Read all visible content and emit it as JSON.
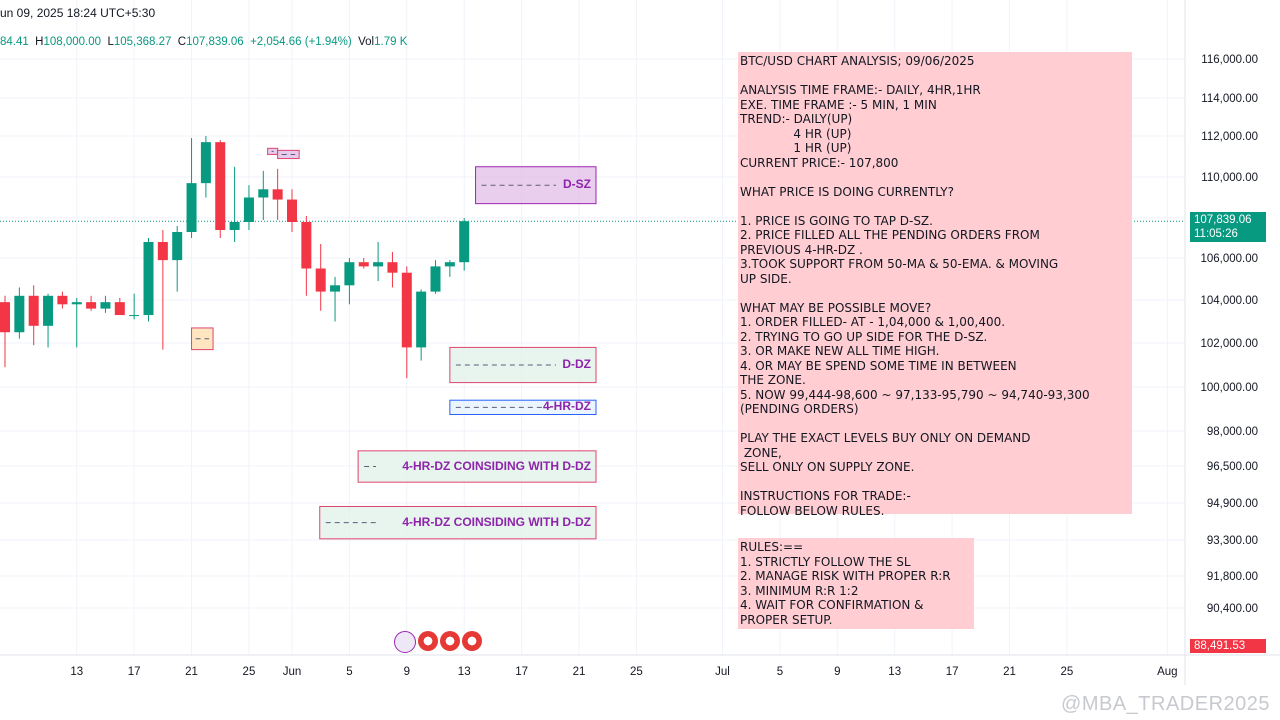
{
  "header": {
    "datetime": "un 09, 2025 18:24 UTC+5:30",
    "ohlc": {
      "open_partial": "84.41",
      "high_label": "H",
      "high": "108,000.00",
      "low_label": "L",
      "low": "105,368.27",
      "close_label": "C",
      "close": "107,839.06",
      "change": "+2,054.66 (+1.94%)",
      "vol_label": "Vol",
      "vol": "1.79 K"
    }
  },
  "price_badges": {
    "current_price": "107,839.06",
    "countdown": "11:05:26",
    "low_badge": "88,491.53",
    "current_color": "#089981",
    "low_color": "#f23645"
  },
  "zones": [
    {
      "label": "D-SZ",
      "top": 110500,
      "bottom": 108700,
      "x_start_day": 13,
      "fill": "#e1bee7",
      "border": "#9c27b0",
      "label_color": "#8e24aa"
    },
    {
      "label": "D-DZ",
      "top": 101800,
      "bottom": 100200,
      "x_start_day": 11,
      "fill": "#e0f2e9",
      "border": "#e0436f",
      "label_color": "#8e24aa"
    },
    {
      "label": "4-HR-DZ",
      "top": 99400,
      "bottom": 98750,
      "x_start_day": 11,
      "fill": "#e3f2fd",
      "border": "#2962ff",
      "label_color": "#8e24aa"
    },
    {
      "label": "4-HR-DZ COINSIDING WITH D-DZ",
      "top": 97150,
      "bottom": 95800,
      "x_start_day": 6,
      "fill": "#e0f2e9",
      "border": "#e0436f",
      "label_color": "#8e24aa"
    },
    {
      "label": "4-HR-DZ COINSIDING WITH D-DZ",
      "top": 94750,
      "bottom": 93350,
      "x_start_day": 5,
      "fill": "#e0f2e9",
      "border": "#e0436f",
      "label_color": "#8e24aa"
    }
  ],
  "small_zones": [
    {
      "label": "",
      "top": 102700,
      "bottom": 101700,
      "x0_day": -7,
      "x1_day": -5.5,
      "fill": "#ffe0b2",
      "border": "#e0436f"
    },
    {
      "label": "",
      "top": 111400,
      "bottom": 111100,
      "x0_day": -1.7,
      "x1_day": -1.0,
      "fill": "#e1bee7",
      "border": "#e0436f"
    },
    {
      "label": "",
      "top": 111300,
      "bottom": 110900,
      "x0_day": -1.0,
      "x1_day": 0.5,
      "fill": "#e1bee7",
      "border": "#e0436f"
    }
  ],
  "analysis_note": {
    "text": "BTC/USD CHART ANALYSIS; 09/06/2025\n\nANALYSIS TIME FRAME:- DAILY, 4HR,1HR\nEXE. TIME FRAME :- 5 MIN, 1 MIN\nTREND:- DAILY(UP)\n              4 HR (UP)\n              1 HR (UP)\nCURRENT PRICE:- 107,800\n\nWHAT PRICE IS DOING CURRENTLY?\n\n1. PRICE IS GOING TO TAP D-SZ.\n2. PRICE FILLED ALL THE PENDING ORDERS FROM\nPREVIOUS 4-HR-DZ .\n3.TOOK SUPPORT FROM 50-MA & 50-EMA. & MOVING\nUP SIDE.\n\nWHAT MAY BE POSSIBLE MOVE?\n1. ORDER FILLED- AT - 1,04,000 & 1,00,400.\n2. TRYING TO GO UP SIDE FOR THE D-SZ.\n3. OR MAKE NEW ALL TIME HIGH.\n4. OR MAY BE SPEND SOME TIME IN BETWEEN\nTHE ZONE.\n5. NOW 99,444-98,600 ~ 97,133-95,790 ~ 94,740-93,300\n(PENDING ORDERS)\n\nPLAY THE EXACT LEVELS BUY ONLY ON DEMAND\n ZONE,\nSELL ONLY ON SUPPLY ZONE.\n\nINSTRUCTIONS FOR TRADE:-\nFOLLOW BELOW RULES."
  },
  "rules_note": {
    "text": "RULES:==\n1. STRICTLY FOLLOW THE SL\n2. MANAGE RISK WITH PROPER R:R\n3. MINIMUM R:R 1:2\n4. WAIT FOR CONFIRMATION &\nPROPER SETUP."
  },
  "watermark": "@MBA_TRADER2025",
  "chart_data": {
    "type": "candlestick",
    "title": "",
    "y_axis_position": "right",
    "y_ticks": [
      "116,000.00",
      "114,000.00",
      "112,000.00",
      "110,000.00",
      "107,839.06",
      "106,000.00",
      "104,000.00",
      "102,000.00",
      "100,000.00",
      "98,000.00",
      "96,500.00",
      "94,900.00",
      "93,300.00",
      "91,800.00",
      "90,400.00",
      "88,491.53"
    ],
    "y_tick_values": [
      116000,
      114000,
      112000,
      110000,
      108000,
      106000,
      104000,
      102000,
      100000,
      98000,
      96500,
      94900,
      93300,
      91800,
      90400
    ],
    "x_ticks": [
      {
        "label": "13",
        "day": -15
      },
      {
        "label": "17",
        "day": -11
      },
      {
        "label": "21",
        "day": -7
      },
      {
        "label": "25",
        "day": -3
      },
      {
        "label": "Jun",
        "day": 0
      },
      {
        "label": "5",
        "day": 4
      },
      {
        "label": "9",
        "day": 8
      },
      {
        "label": "13",
        "day": 12
      },
      {
        "label": "17",
        "day": 16
      },
      {
        "label": "21",
        "day": 20
      },
      {
        "label": "25",
        "day": 24
      },
      {
        "label": "Jul",
        "day": 30
      },
      {
        "label": "5",
        "day": 34
      },
      {
        "label": "9",
        "day": 38
      },
      {
        "label": "13",
        "day": 42
      },
      {
        "label": "17",
        "day": 46
      },
      {
        "label": "21",
        "day": 50
      },
      {
        "label": "25",
        "day": 54
      },
      {
        "label": "Aug",
        "day": 61
      }
    ],
    "candles": [
      {
        "day": -20,
        "o": 103900,
        "h": 104200,
        "l": 100900,
        "c": 102500
      },
      {
        "day": -19,
        "o": 102500,
        "h": 104600,
        "l": 102200,
        "c": 104200
      },
      {
        "day": -18,
        "o": 104200,
        "h": 104700,
        "l": 101900,
        "c": 102800
      },
      {
        "day": -17,
        "o": 102800,
        "h": 104300,
        "l": 101800,
        "c": 104200
      },
      {
        "day": -16,
        "o": 104200,
        "h": 104400,
        "l": 103600,
        "c": 103800
      },
      {
        "day": -15,
        "o": 103800,
        "h": 104100,
        "l": 101800,
        "c": 103900
      },
      {
        "day": -14,
        "o": 103900,
        "h": 104200,
        "l": 103500,
        "c": 103600
      },
      {
        "day": -13,
        "o": 103600,
        "h": 104200,
        "l": 103400,
        "c": 103900
      },
      {
        "day": -12,
        "o": 103900,
        "h": 104100,
        "l": 103300,
        "c": 103300
      },
      {
        "day": -11,
        "o": 103300,
        "h": 104300,
        "l": 103100,
        "c": 103300
      },
      {
        "day": -10,
        "o": 103300,
        "h": 107000,
        "l": 103000,
        "c": 106800
      },
      {
        "day": -9,
        "o": 106800,
        "h": 107400,
        "l": 101700,
        "c": 105900
      },
      {
        "day": -8,
        "o": 105900,
        "h": 107600,
        "l": 104400,
        "c": 107300
      },
      {
        "day": -7,
        "o": 107300,
        "h": 111900,
        "l": 107000,
        "c": 109700
      },
      {
        "day": -6,
        "o": 109700,
        "h": 112000,
        "l": 109000,
        "c": 111700
      },
      {
        "day": -5,
        "o": 111700,
        "h": 111800,
        "l": 107000,
        "c": 107400
      },
      {
        "day": -4,
        "o": 107400,
        "h": 110500,
        "l": 106800,
        "c": 107800
      },
      {
        "day": -3,
        "o": 107800,
        "h": 109600,
        "l": 107400,
        "c": 109000
      },
      {
        "day": -2,
        "o": 109000,
        "h": 110300,
        "l": 107900,
        "c": 109400
      },
      {
        "day": -1,
        "o": 109400,
        "h": 110400,
        "l": 107900,
        "c": 108900
      },
      {
        "day": 0,
        "o": 108900,
        "h": 109400,
        "l": 107300,
        "c": 107800
      },
      {
        "day": 1,
        "o": 107800,
        "h": 108100,
        "l": 104200,
        "c": 105500
      },
      {
        "day": 2,
        "o": 105500,
        "h": 106700,
        "l": 103500,
        "c": 104400
      },
      {
        "day": 3,
        "o": 104400,
        "h": 105100,
        "l": 103000,
        "c": 104700
      },
      {
        "day": 4,
        "o": 104700,
        "h": 106000,
        "l": 103800,
        "c": 105800
      },
      {
        "day": 5,
        "o": 105800,
        "h": 106000,
        "l": 105500,
        "c": 105600
      },
      {
        "day": 6,
        "o": 105600,
        "h": 106800,
        "l": 104900,
        "c": 105800
      },
      {
        "day": 7,
        "o": 105800,
        "h": 106300,
        "l": 104600,
        "c": 105300
      },
      {
        "day": 8,
        "o": 105300,
        "h": 105600,
        "l": 100400,
        "c": 101800
      },
      {
        "day": 9,
        "o": 101800,
        "h": 104500,
        "l": 101200,
        "c": 104400
      },
      {
        "day": 10,
        "o": 104400,
        "h": 105900,
        "l": 104300,
        "c": 105600
      },
      {
        "day": 11,
        "o": 105600,
        "h": 105900,
        "l": 105100,
        "c": 105800
      },
      {
        "day": 12,
        "o": 105800,
        "h": 108000,
        "l": 105400,
        "c": 107839
      }
    ],
    "current_price": 107839.06,
    "grid": true
  }
}
